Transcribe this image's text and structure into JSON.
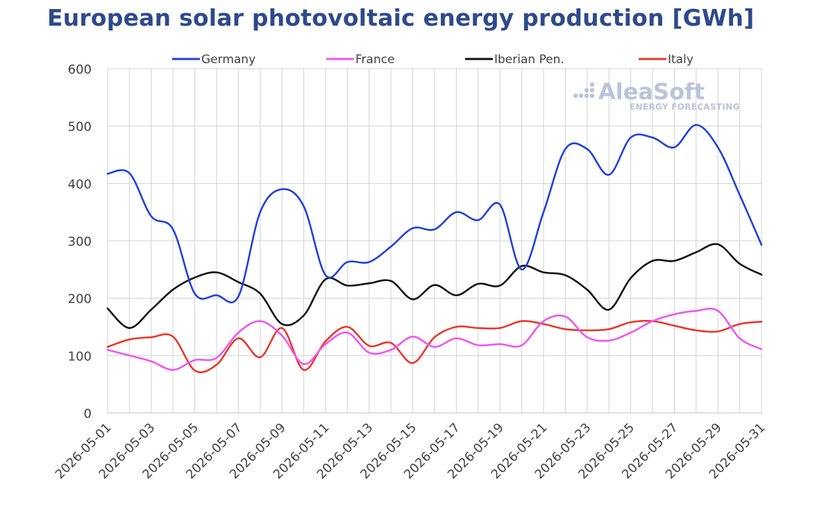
{
  "chart_data": {
    "type": "line",
    "title": "European solar photovoltaic energy production [GWh]",
    "x": [
      "2026-05-01",
      "2026-05-02",
      "2026-05-03",
      "2026-05-04",
      "2026-05-05",
      "2026-05-06",
      "2026-05-07",
      "2026-05-08",
      "2026-05-09",
      "2026-05-10",
      "2026-05-11",
      "2026-05-12",
      "2026-05-13",
      "2026-05-14",
      "2026-05-15",
      "2026-05-16",
      "2026-05-17",
      "2026-05-18",
      "2026-05-19",
      "2026-05-20",
      "2026-05-21",
      "2026-05-22",
      "2026-05-23",
      "2026-05-24",
      "2026-05-25",
      "2026-05-26",
      "2026-05-27",
      "2026-05-28",
      "2026-05-29",
      "2026-05-30",
      "2026-05-31"
    ],
    "x_tick_labels": [
      "2026-05-01",
      "2026-05-03",
      "2026-05-05",
      "2026-05-07",
      "2026-05-09",
      "2026-05-11",
      "2026-05-13",
      "2026-05-15",
      "2026-05-17",
      "2026-05-19",
      "2026-05-21",
      "2026-05-23",
      "2026-05-25",
      "2026-05-27",
      "2026-05-29",
      "2026-05-31"
    ],
    "y_ticks": [
      0,
      100,
      200,
      300,
      400,
      500,
      600
    ],
    "ylim": [
      0,
      600
    ],
    "xlabel": "",
    "ylabel": "",
    "grid": true,
    "legend_position": "top",
    "series": [
      {
        "name": "Germany",
        "color": "#1F3FE0",
        "values": [
          417,
          418,
          343,
          320,
          208,
          205,
          203,
          350,
          390,
          360,
          240,
          263,
          263,
          290,
          322,
          320,
          350,
          336,
          363,
          250,
          350,
          460,
          460,
          415,
          480,
          480,
          463,
          502,
          463,
          380,
          293
        ]
      },
      {
        "name": "France",
        "color": "#F055F0",
        "values": [
          110,
          100,
          90,
          75,
          92,
          96,
          140,
          160,
          135,
          85,
          120,
          140,
          105,
          110,
          133,
          115,
          130,
          118,
          120,
          118,
          160,
          168,
          132,
          126,
          140,
          160,
          172,
          178,
          178,
          130,
          111
        ]
      },
      {
        "name": "Iberian Pen.",
        "color": "#111111",
        "values": [
          182,
          148,
          180,
          215,
          236,
          245,
          228,
          208,
          155,
          170,
          233,
          222,
          226,
          230,
          198,
          223,
          205,
          225,
          222,
          256,
          245,
          240,
          215,
          180,
          235,
          265,
          265,
          280,
          294,
          260,
          241
        ]
      },
      {
        "name": "Italy",
        "color": "#E8382A",
        "values": [
          115,
          128,
          132,
          133,
          74,
          84,
          130,
          97,
          148,
          75,
          125,
          150,
          117,
          122,
          87,
          132,
          150,
          148,
          148,
          160,
          155,
          146,
          144,
          146,
          158,
          160,
          152,
          144,
          142,
          155,
          159
        ]
      }
    ]
  },
  "watermark": {
    "brand": "AleaSoft",
    "tagline": "ENERGY FORECASTING"
  }
}
